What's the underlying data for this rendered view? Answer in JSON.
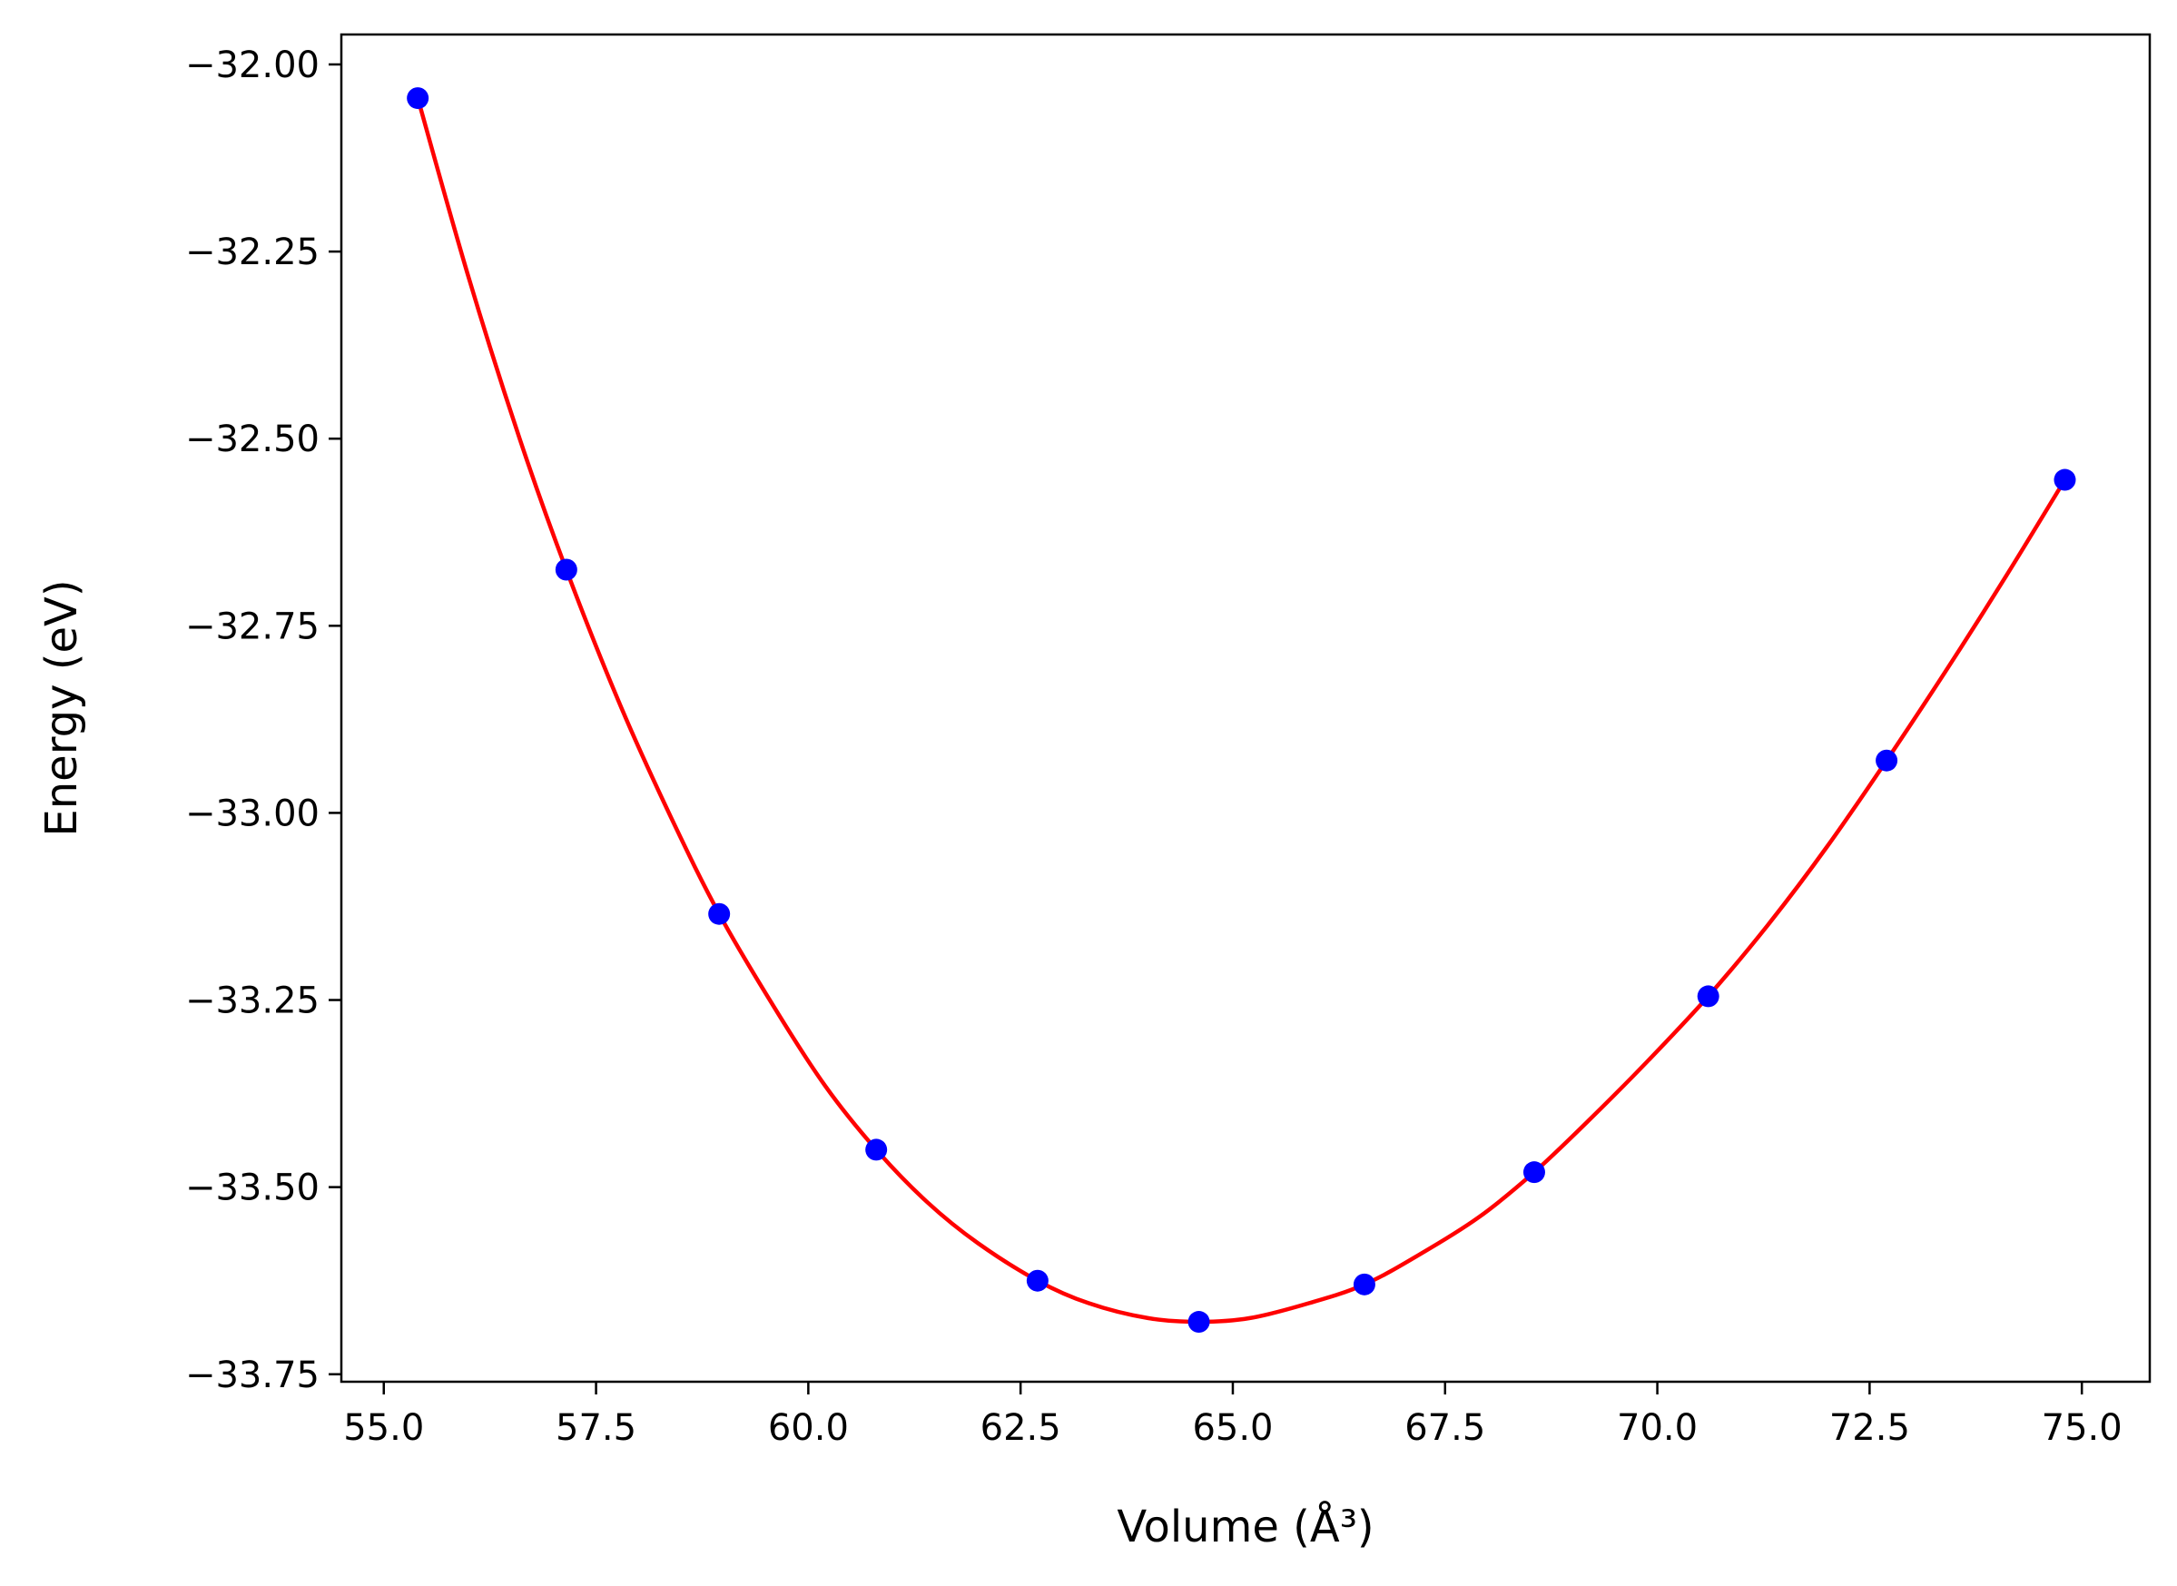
{
  "chart_data": {
    "type": "scatter",
    "xlabel": "Volume (Å³)",
    "ylabel": "Energy (eV)",
    "xlim": [
      54.5,
      75.8
    ],
    "ylim": [
      -33.76,
      -31.96
    ],
    "x_ticks": [
      55.0,
      57.5,
      60.0,
      62.5,
      65.0,
      67.5,
      70.0,
      72.5,
      75.0
    ],
    "x_tick_labels": [
      "55.0",
      "57.5",
      "60.0",
      "62.5",
      "65.0",
      "67.5",
      "70.0",
      "72.5",
      "75.0"
    ],
    "y_ticks": [
      -32.0,
      -32.25,
      -32.5,
      -32.75,
      -33.0,
      -33.25,
      -33.5,
      -33.75
    ],
    "y_tick_labels": [
      "−32.00",
      "−32.25",
      "−32.50",
      "−32.75",
      "−33.00",
      "−33.25",
      "−33.50",
      "−33.75"
    ],
    "grid": false,
    "series": [
      {
        "kind": "points",
        "color": "#0000ff",
        "x": [
          55.4,
          57.15,
          58.95,
          60.8,
          62.7,
          64.6,
          66.55,
          68.55,
          70.6,
          72.7,
          74.8
        ],
        "y": [
          -32.045,
          -32.675,
          -33.135,
          -33.45,
          -33.625,
          -33.68,
          -33.63,
          -33.48,
          -33.245,
          -32.93,
          -32.555
        ]
      },
      {
        "kind": "fit-curve",
        "color": "#ff0000",
        "x": [
          55.4,
          56.0,
          56.6,
          57.15,
          57.8,
          58.4,
          58.95,
          59.6,
          60.2,
          60.8,
          61.4,
          62.0,
          62.7,
          63.3,
          64.0,
          64.6,
          65.2,
          65.9,
          66.55,
          67.2,
          67.9,
          68.55,
          69.2,
          69.9,
          70.6,
          71.3,
          72.0,
          72.7,
          73.4,
          74.1,
          74.8
        ],
        "y": [
          -32.045,
          -32.285,
          -32.5,
          -32.675,
          -32.86,
          -33.01,
          -33.135,
          -33.26,
          -33.365,
          -33.45,
          -33.52,
          -33.575,
          -33.625,
          -33.655,
          -33.675,
          -33.68,
          -33.675,
          -33.655,
          -33.63,
          -33.59,
          -33.54,
          -33.48,
          -33.41,
          -33.33,
          -33.245,
          -33.15,
          -33.045,
          -32.93,
          -32.81,
          -32.685,
          -32.555
        ]
      }
    ]
  }
}
